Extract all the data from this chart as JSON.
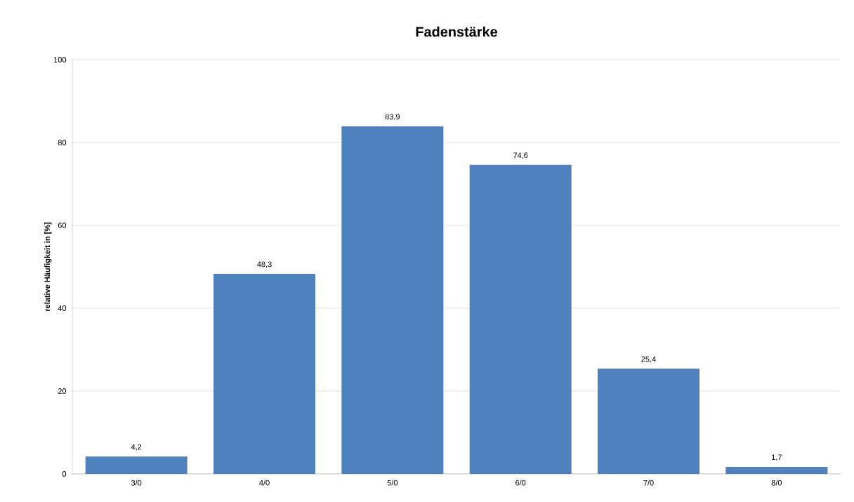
{
  "chart_data": {
    "type": "bar",
    "title": "Fadenstärke",
    "ylabel": "relative Häufigkeit in [%]",
    "categories": [
      "3/0",
      "4/0",
      "5/0",
      "6/0",
      "7/0",
      "8/0"
    ],
    "values": [
      4.2,
      48.3,
      83.9,
      74.6,
      25.4,
      1.7
    ],
    "value_labels": [
      "4,2",
      "48,3",
      "83,9",
      "74,6",
      "25,4",
      "1,7"
    ],
    "color": "#4f81bd",
    "ylim": [
      0,
      100
    ],
    "yticks": [
      0,
      20,
      40,
      60,
      80,
      100
    ],
    "grid": "y"
  }
}
